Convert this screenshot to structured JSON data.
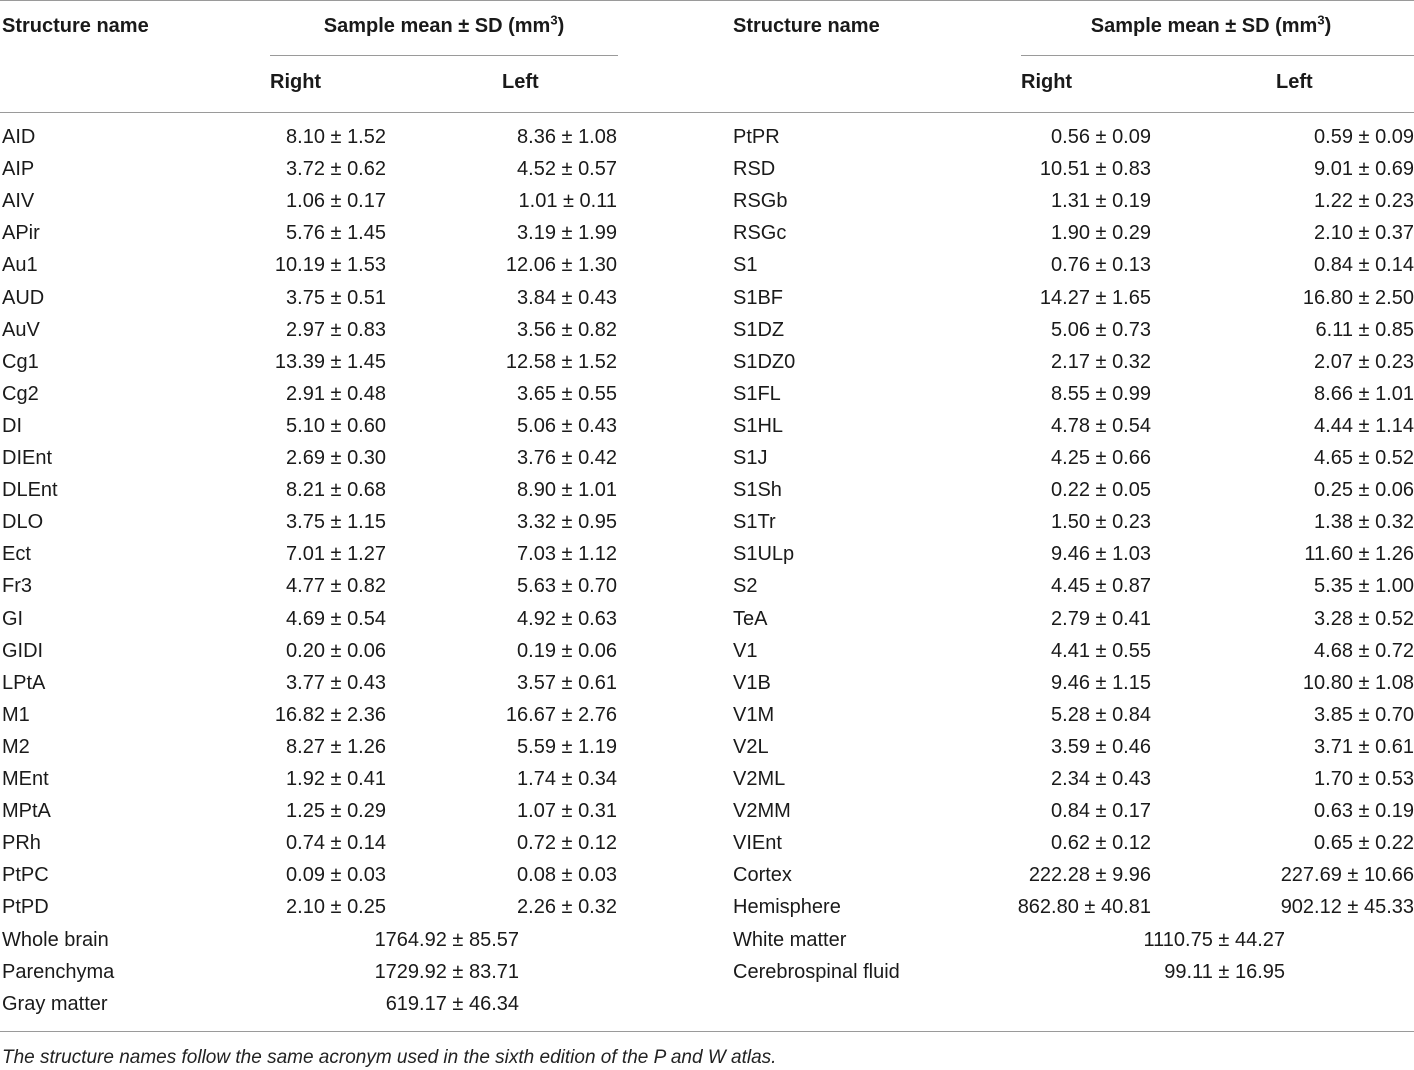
{
  "header": {
    "structure_name": "Structure name",
    "sample_mean_prefix": "Sample mean ± SD (mm",
    "sample_mean_sup": "3",
    "sample_mean_suffix": ")",
    "right": "Right",
    "left": "Left"
  },
  "left_rows": [
    {
      "name": "AID",
      "right": "8.10 ± 1.52",
      "left": "8.36 ± 1.08"
    },
    {
      "name": "AIP",
      "right": "3.72 ± 0.62",
      "left": "4.52 ± 0.57"
    },
    {
      "name": "AIV",
      "right": "1.06 ± 0.17",
      "left": "1.01 ± 0.11"
    },
    {
      "name": "APir",
      "right": "5.76 ± 1.45",
      "left": "3.19 ± 1.99"
    },
    {
      "name": "Au1",
      "right": "10.19 ± 1.53",
      "left": "12.06 ± 1.30"
    },
    {
      "name": "AUD",
      "right": "3.75 ± 0.51",
      "left": "3.84 ± 0.43"
    },
    {
      "name": "AuV",
      "right": "2.97 ± 0.83",
      "left": "3.56 ± 0.82"
    },
    {
      "name": "Cg1",
      "right": "13.39 ± 1.45",
      "left": "12.58 ± 1.52"
    },
    {
      "name": "Cg2",
      "right": "2.91 ± 0.48",
      "left": "3.65 ± 0.55"
    },
    {
      "name": "DI",
      "right": "5.10 ± 0.60",
      "left": "5.06 ± 0.43"
    },
    {
      "name": "DIEnt",
      "right": "2.69 ± 0.30",
      "left": "3.76 ± 0.42"
    },
    {
      "name": "DLEnt",
      "right": "8.21 ± 0.68",
      "left": "8.90 ± 1.01"
    },
    {
      "name": "DLO",
      "right": "3.75 ± 1.15",
      "left": "3.32 ± 0.95"
    },
    {
      "name": "Ect",
      "right": "7.01 ± 1.27",
      "left": "7.03 ± 1.12"
    },
    {
      "name": "Fr3",
      "right": "4.77 ± 0.82",
      "left": "5.63 ± 0.70"
    },
    {
      "name": "GI",
      "right": "4.69 ± 0.54",
      "left": "4.92 ± 0.63"
    },
    {
      "name": "GIDI",
      "right": "0.20 ± 0.06",
      "left": "0.19 ± 0.06"
    },
    {
      "name": "LPtA",
      "right": "3.77 ± 0.43",
      "left": "3.57 ± 0.61"
    },
    {
      "name": "M1",
      "right": "16.82 ± 2.36",
      "left": "16.67 ± 2.76"
    },
    {
      "name": "M2",
      "right": "8.27 ± 1.26",
      "left": "5.59 ± 1.19"
    },
    {
      "name": "MEnt",
      "right": "1.92 ± 0.41",
      "left": "1.74 ± 0.34"
    },
    {
      "name": "MPtA",
      "right": "1.25 ± 0.29",
      "left": "1.07 ± 0.31"
    },
    {
      "name": "PRh",
      "right": "0.74 ± 0.14",
      "left": "0.72 ± 0.12"
    },
    {
      "name": "PtPC",
      "right": "0.09 ± 0.03",
      "left": "0.08 ± 0.03"
    },
    {
      "name": "PtPD",
      "right": "2.10 ± 0.25",
      "left": "2.26 ± 0.32"
    }
  ],
  "right_rows": [
    {
      "name": "PtPR",
      "right": "0.56 ± 0.09",
      "left": "0.59 ± 0.09"
    },
    {
      "name": "RSD",
      "right": "10.51 ± 0.83",
      "left": "9.01 ± 0.69"
    },
    {
      "name": "RSGb",
      "right": "1.31 ± 0.19",
      "left": "1.22 ± 0.23"
    },
    {
      "name": "RSGc",
      "right": "1.90 ± 0.29",
      "left": "2.10 ± 0.37"
    },
    {
      "name": "S1",
      "right": "0.76 ± 0.13",
      "left": "0.84 ± 0.14"
    },
    {
      "name": "S1BF",
      "right": "14.27 ± 1.65",
      "left": "16.80 ± 2.50"
    },
    {
      "name": "S1DZ",
      "right": "5.06 ± 0.73",
      "left": "6.11 ± 0.85"
    },
    {
      "name": "S1DZ0",
      "right": "2.17 ± 0.32",
      "left": "2.07 ± 0.23"
    },
    {
      "name": "S1FL",
      "right": "8.55 ± 0.99",
      "left": "8.66 ± 1.01"
    },
    {
      "name": "S1HL",
      "right": "4.78 ± 0.54",
      "left": "4.44 ± 1.14"
    },
    {
      "name": "S1J",
      "right": "4.25 ± 0.66",
      "left": "4.65 ± 0.52"
    },
    {
      "name": "S1Sh",
      "right": "0.22 ± 0.05",
      "left": "0.25 ± 0.06"
    },
    {
      "name": "S1Tr",
      "right": "1.50 ± 0.23",
      "left": "1.38 ± 0.32"
    },
    {
      "name": "S1ULp",
      "right": "9.46 ± 1.03",
      "left": "11.60 ± 1.26"
    },
    {
      "name": "S2",
      "right": "4.45 ± 0.87",
      "left": "5.35 ± 1.00"
    },
    {
      "name": "TeA",
      "right": "2.79 ± 0.41",
      "left": "3.28 ± 0.52"
    },
    {
      "name": "V1",
      "right": "4.41 ± 0.55",
      "left": "4.68 ± 0.72"
    },
    {
      "name": "V1B",
      "right": "9.46 ± 1.15",
      "left": "10.80 ± 1.08"
    },
    {
      "name": "V1M",
      "right": "5.28 ± 0.84",
      "left": "3.85 ± 0.70"
    },
    {
      "name": "V2L",
      "right": "3.59 ± 0.46",
      "left": "3.71 ± 0.61"
    },
    {
      "name": "V2ML",
      "right": "2.34 ± 0.43",
      "left": "1.70 ± 0.53"
    },
    {
      "name": "V2MM",
      "right": "0.84 ± 0.17",
      "left": "0.63 ± 0.19"
    },
    {
      "name": "VIEnt",
      "right": "0.62 ± 0.12",
      "left": "0.65 ± 0.22"
    },
    {
      "name": "Cortex",
      "right": "222.28 ± 9.96",
      "left": "227.69 ± 10.66"
    },
    {
      "name": "Hemisphere",
      "right": "862.80 ± 40.81",
      "left": "902.12 ± 45.33"
    }
  ],
  "left_totals": [
    {
      "name": "Whole brain",
      "value": "1764.92 ± 85.57"
    },
    {
      "name": "Parenchyma",
      "value": "1729.92 ± 83.71"
    },
    {
      "name": "Gray matter",
      "value": "619.17 ± 46.34"
    }
  ],
  "right_totals": [
    {
      "name": "White matter",
      "value": "1110.75 ± 44.27"
    },
    {
      "name": "Cerebrospinal fluid",
      "value": "99.11 ± 16.95"
    }
  ],
  "footnote": "The structure names follow the same acronym used in the sixth edition of the P and W atlas."
}
